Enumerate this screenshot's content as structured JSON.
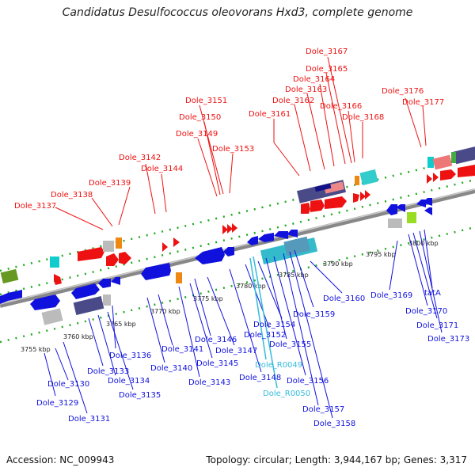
{
  "title": "Candidatus Desulfococcus oleovorans Hxd3, complete genome",
  "footer": {
    "accession": "Accession: NC_009943",
    "topology": "Topology: circular; Length: 3,944,167 bp; Genes: 3,317"
  },
  "colors": {
    "forward_gene": "#ee1111",
    "reverse_gene": "#1111dd",
    "rna_label": "#33bbdd",
    "backbone": "#888888",
    "dotted_track": "#22aa22"
  },
  "tick_labels": [
    "3755 kbp",
    "3760 kbp",
    "3765 kbp",
    "3770 kbp",
    "3775 kbp",
    "3780 kbp",
    "3785 kbp",
    "3790 kbp",
    "3795 kbp",
    "3800 kbp"
  ],
  "upper_labels": [
    "Dole_3137",
    "Dole_3138",
    "Dole_3139",
    "Dole_3142",
    "Dole_3144",
    "Dole_3149",
    "Dole_3150",
    "Dole_3151",
    "Dole_3153",
    "Dole_3161",
    "Dole_3162",
    "Dole_3163",
    "Dole_3164",
    "Dole_3165",
    "Dole_3167",
    "Dole_3166",
    "Dole_3168",
    "Dole_3176",
    "Dole_3177"
  ],
  "lower_labels": [
    "Dole_3129",
    "Dole_3130",
    "Dole_3131",
    "Dole_3133",
    "Dole_3134",
    "Dole_3135",
    "Dole_3136",
    "Dole_3140",
    "Dole_3141",
    "Dole_3143",
    "Dole_3145",
    "Dole_3146",
    "Dole_3147",
    "Dole_3148",
    "Dole_3152",
    "Dole_3154",
    "Dole_3155",
    "Dole_3156",
    "Dole_3157",
    "Dole_3158",
    "Dole_3159",
    "Dole_3160",
    "Dole_3169",
    "Dole_3170",
    "Dole_3171",
    "Dole_3173",
    "tatA"
  ],
  "rna_labels": [
    "Dole_R0049",
    "Dole_R0050"
  ]
}
